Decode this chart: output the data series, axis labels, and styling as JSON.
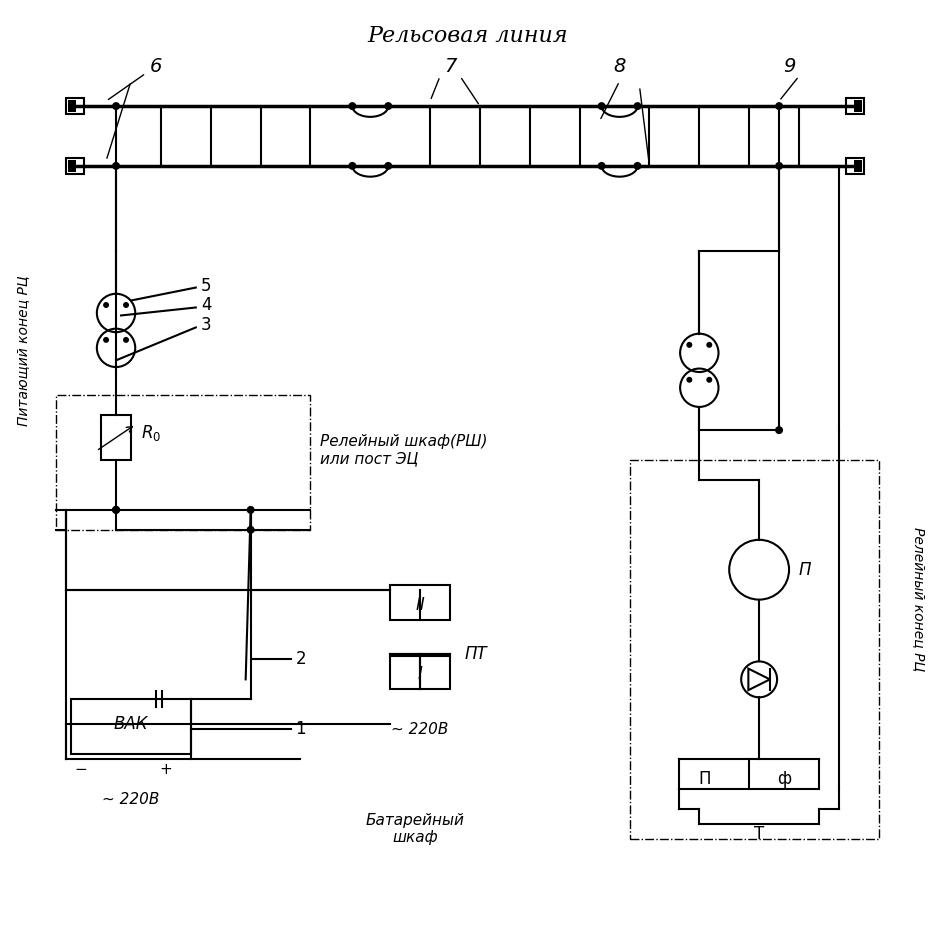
{
  "title": "Рельсовая линия",
  "bg_color": "#ffffff",
  "line_color": "#000000",
  "fig_width": 9.36,
  "fig_height": 9.41,
  "labels": {
    "title": "Рельсовая линия",
    "6": "6",
    "7": "7",
    "8": "8",
    "9": "9",
    "5": "5",
    "4": "4",
    "3": "3",
    "R0": "$R_0$",
    "relay_cabinet": "Релейный шкаф(РШ)\nили пост ЭЦ",
    "P": "П",
    "F": "ф",
    "T": "Т",
    "PT": "ПТ",
    "II": "II",
    "I": "I",
    "v220_1": "~ 220В",
    "v220_2": "~ 220В",
    "VAK": "ВАК",
    "battery": "Батарейный\nшкаф",
    "питающий": "Питающий конец РЦ",
    "релейный": "Релейный конец РЦ",
    "1": "1",
    "2": "2"
  }
}
